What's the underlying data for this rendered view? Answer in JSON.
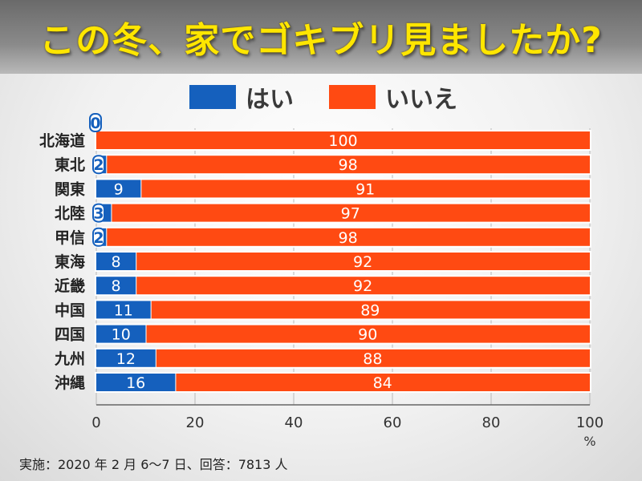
{
  "title": "この冬、家でゴキブリ見ましたか?",
  "legend": [
    {
      "label": "はい",
      "color": "#1560bd"
    },
    {
      "label": "いいえ",
      "color": "#ff4a12"
    }
  ],
  "footnote": "実施：2020 年 2 月 6〜7 日、回答：7813 人",
  "colors": {
    "title": "#ffe600",
    "yes": "#1560bd",
    "no": "#ff4a12",
    "bar_outline": "#ffffff"
  },
  "chart_data": {
    "type": "bar",
    "orientation": "horizontal",
    "stacked": true,
    "title": "この冬、家でゴキブリ見ましたか?",
    "categories": [
      "北海道",
      "東北",
      "関東",
      "北陸",
      "甲信",
      "東海",
      "近畿",
      "中国",
      "四国",
      "九州",
      "沖縄"
    ],
    "series": [
      {
        "name": "はい",
        "values": [
          0,
          2,
          9,
          3,
          2,
          8,
          8,
          11,
          10,
          12,
          16
        ]
      },
      {
        "name": "いいえ",
        "values": [
          100,
          98,
          91,
          97,
          98,
          92,
          92,
          89,
          90,
          88,
          84
        ]
      }
    ],
    "xlim": [
      0,
      100
    ],
    "xticks": [
      "0",
      "20",
      "40",
      "60",
      "80",
      "100"
    ],
    "xunit": "%",
    "grid": true,
    "legend_position": "top"
  }
}
